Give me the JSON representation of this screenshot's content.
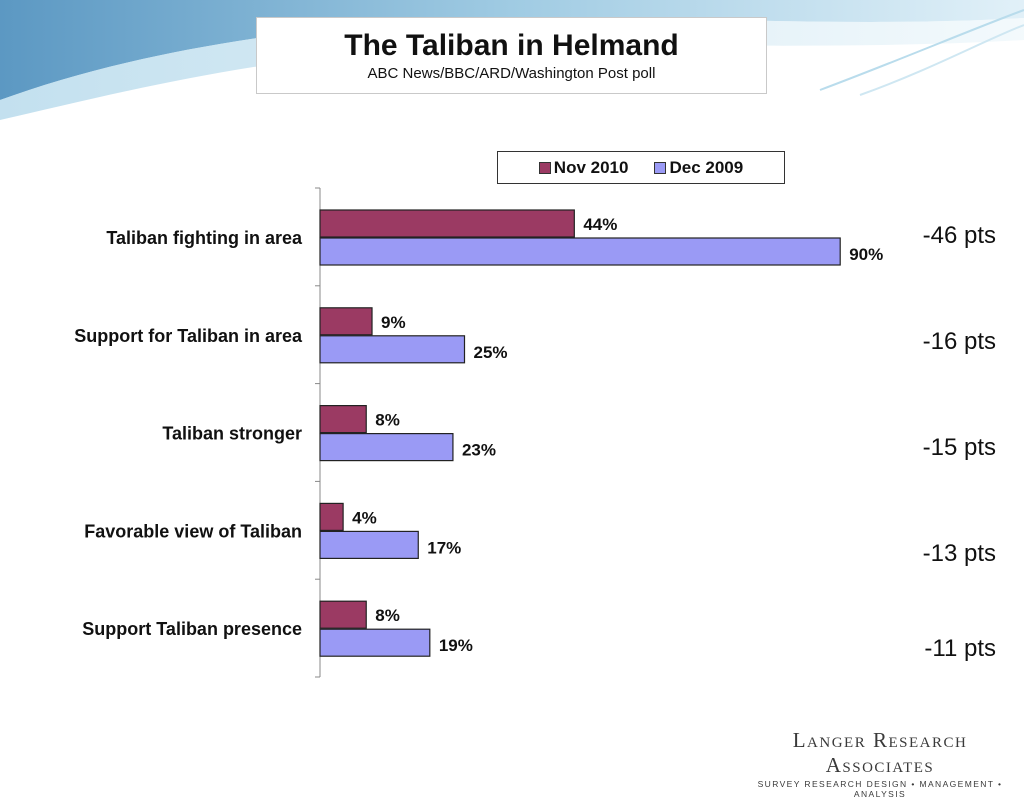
{
  "header": {
    "title": "The Taliban in Helmand",
    "subtitle": "ABC News/BBC/ARD/Washington Post poll"
  },
  "legend": {
    "items": [
      {
        "label": "Nov 2010",
        "color": "#9b3a63"
      },
      {
        "label": "Dec 2009",
        "color": "#9a9af5"
      }
    ]
  },
  "deltas": [
    "-46 pts",
    "-16 pts",
    "-15 pts",
    "-13 pts",
    "-11 pts"
  ],
  "logo": {
    "name": "Langer Research Associates",
    "tagline": "SURVEY RESEARCH DESIGN • MANAGEMENT • ANALYSIS"
  },
  "chart_data": {
    "type": "bar",
    "orientation": "horizontal",
    "categories": [
      "Taliban fighting in area",
      "Support for Taliban in area",
      "Taliban stronger",
      "Favorable view of Taliban",
      "Support Taliban presence"
    ],
    "series": [
      {
        "name": "Nov 2010",
        "values": [
          44,
          9,
          8,
          4,
          8
        ],
        "labels": [
          "44%",
          "9%",
          "8%",
          "4%",
          "8%"
        ],
        "color": "#9b3a63"
      },
      {
        "name": "Dec 2009",
        "values": [
          90,
          25,
          23,
          17,
          19
        ],
        "labels": [
          "90%",
          "25%",
          "23%",
          "17%",
          "19%"
        ],
        "color": "#9a9af5"
      }
    ],
    "xlim": [
      0,
      100
    ],
    "grid": false,
    "legend_position": "top-right"
  }
}
